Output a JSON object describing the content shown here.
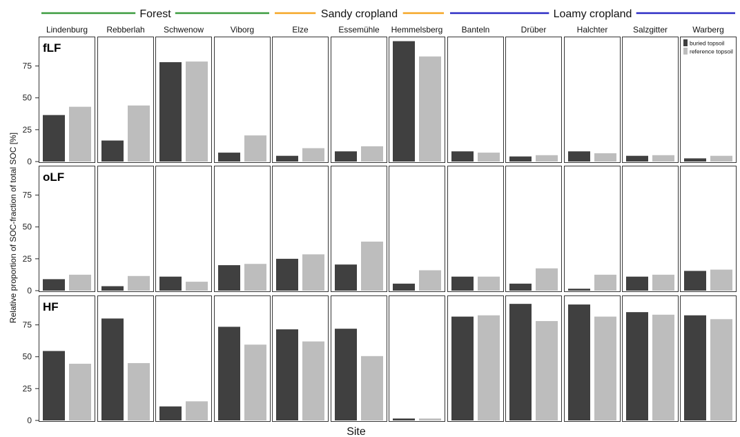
{
  "chart_data": {
    "type": "bar",
    "xlabel": "Site",
    "ylabel": "Relative proportion of SOC-fraction of total SOC [%]",
    "ylim": [
      0,
      97
    ],
    "yticks": [
      0,
      25,
      50,
      75
    ],
    "grid": false,
    "legend_position": "top-right",
    "groups": [
      {
        "name": "Forest",
        "color": "#3a9b3e",
        "sites": [
          "Lindenburg",
          "Rebberlah",
          "Schwenow",
          "Viborg"
        ]
      },
      {
        "name": "Sandy cropland",
        "color": "#f5a623",
        "sites": [
          "Elze",
          "Essemühle",
          "Hemmelsberg"
        ]
      },
      {
        "name": "Loamy cropland",
        "color": "#2b2bc4",
        "sites": [
          "Banteln",
          "Drüber",
          "Halchter",
          "Salzgitter",
          "Warberg"
        ]
      }
    ],
    "sites": [
      "Lindenburg",
      "Rebberlah",
      "Schwenow",
      "Viborg",
      "Elze",
      "Essemühle",
      "Hemmelsberg",
      "Banteln",
      "Drüber",
      "Halchter",
      "Salzgitter",
      "Warberg"
    ],
    "series": [
      {
        "name": "buried topsoil",
        "color": "#404040"
      },
      {
        "name": "reference topsoil",
        "color": "#bdbdbd"
      }
    ],
    "panels": [
      {
        "label": "fLF",
        "buried": [
          36.5,
          16.5,
          78,
          7,
          4.5,
          8,
          94.5,
          8,
          4,
          8,
          4.5,
          2.5
        ],
        "reference": [
          43,
          44,
          78.5,
          20.5,
          10.5,
          12,
          82.5,
          7,
          5,
          6.5,
          5,
          4.5
        ]
      },
      {
        "label": "oLF",
        "buried": [
          9,
          3.5,
          11,
          20,
          25,
          20.5,
          5.5,
          11,
          5.5,
          1.5,
          11,
          15.5
        ],
        "reference": [
          12.5,
          11.5,
          7,
          21,
          28.5,
          38.5,
          16,
          11,
          17.5,
          12.5,
          12.5,
          16.5
        ]
      },
      {
        "label": "HF",
        "buried": [
          54.5,
          80,
          11,
          73.5,
          71.5,
          72,
          1.5,
          81.5,
          91.5,
          91,
          85,
          82.5
        ],
        "reference": [
          44.5,
          45,
          15,
          59.5,
          62,
          50.5,
          1.5,
          82.5,
          78,
          81.5,
          83,
          79.5
        ]
      }
    ]
  }
}
